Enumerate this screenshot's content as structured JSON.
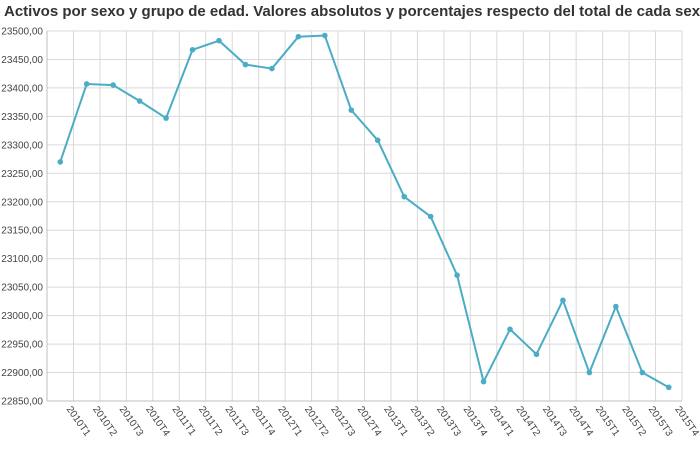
{
  "chart_data": {
    "type": "line",
    "title": "Activos por sexo y grupo de edad. Valores absolutos y porcentajes respecto del total de cada sexo",
    "xlabel": "",
    "ylabel": "",
    "ylim": [
      22850,
      23500
    ],
    "y_ticks": [
      "23500,00",
      "23450,00",
      "23400,00",
      "23350,00",
      "23300,00",
      "23250,00",
      "23200,00",
      "23150,00",
      "23100,00",
      "23050,00",
      "23000,00",
      "22950,00",
      "22900,00",
      "22850,00"
    ],
    "y_tick_values": [
      23500,
      23450,
      23400,
      23350,
      23300,
      23250,
      23200,
      23150,
      23100,
      23050,
      23000,
      22950,
      22900,
      22850
    ],
    "categories": [
      "2010T1",
      "2010T2",
      "2010T3",
      "2010T4",
      "2011T1",
      "2011T2",
      "2011T3",
      "2011T4",
      "2012T1",
      "2012T2",
      "2012T3",
      "2012T4",
      "2013T1",
      "2013T2",
      "2013T3",
      "2013T4",
      "2014T1",
      "2014T2",
      "2014T3",
      "2014T4",
      "2015T1",
      "2015T2",
      "2015T3",
      "2015T4"
    ],
    "series": [
      {
        "values": [
          23270,
          23407,
          23405,
          23377,
          23347,
          23467,
          23483,
          23441,
          23434,
          23490,
          23492,
          23361,
          23308,
          23209,
          23174,
          23071,
          22884,
          22976,
          22932,
          23027,
          22900,
          23016,
          22900,
          22874
        ]
      }
    ],
    "grid": true,
    "legend": "none",
    "colors": {
      "line": "#4bacc6",
      "grid": "#d9d9d9",
      "axis": "#bfbfbf"
    }
  }
}
